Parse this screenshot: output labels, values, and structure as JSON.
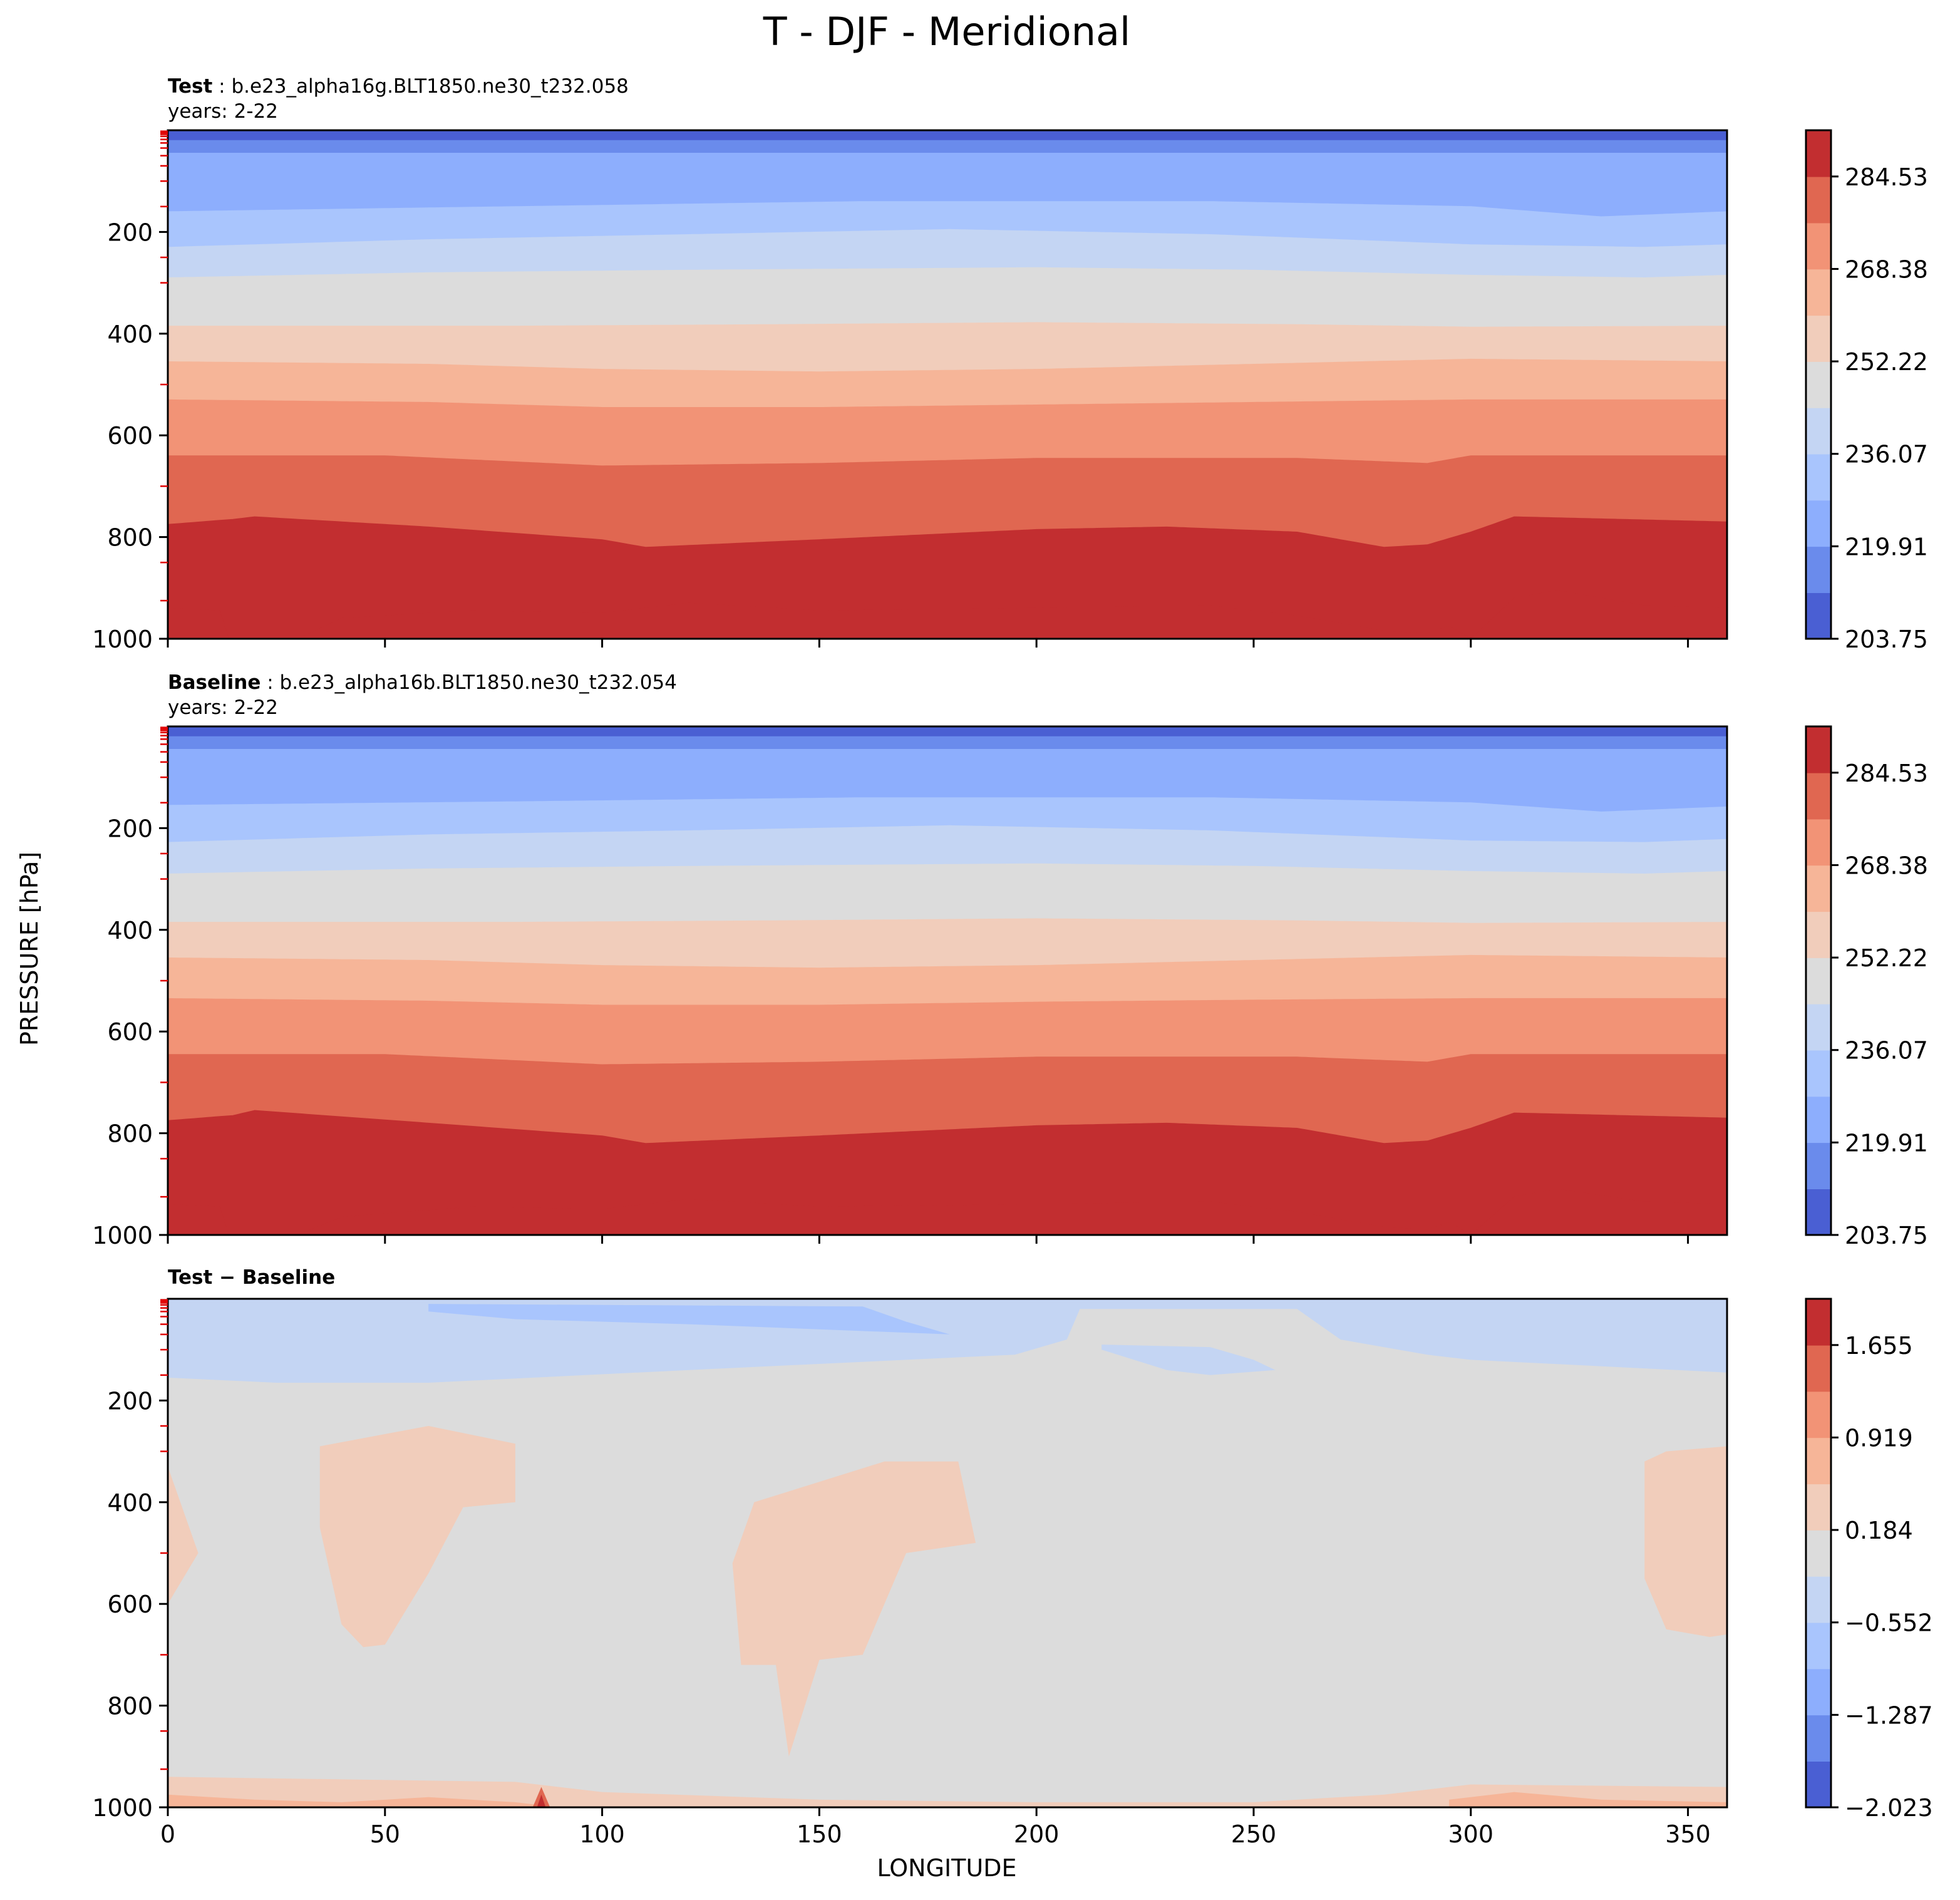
{
  "figure": {
    "title": "T - DJF - Meridional",
    "xlabel": "LONGITUDE",
    "ylabel": "PRESSURE [hPa]"
  },
  "chart_data": [
    {
      "type": "heatmap",
      "panel": "test",
      "title_bold": "Test",
      "title_rest": " : b.e23_alpha16g.BLT1850.ne30_t232.058",
      "subtitle": "years: 2-22",
      "xlim": [
        0,
        359
      ],
      "ylim": [
        1000,
        0
      ],
      "xticks": [
        0,
        50,
        100,
        150,
        200,
        250,
        300,
        350
      ],
      "show_xtick_labels": false,
      "yticks": [
        200,
        400,
        600,
        800,
        1000
      ],
      "colorbar_ticks": [
        "284.53",
        "268.38",
        "252.22",
        "236.07",
        "219.91",
        "203.75"
      ],
      "levels": [
        203.75,
        211.83,
        219.91,
        227.99,
        236.07,
        244.15,
        252.22,
        260.3,
        268.38,
        276.46,
        284.53,
        292.61
      ],
      "colors": [
        "#4a5fd3",
        "#6a8bec",
        "#8daefd",
        "#a9c5fd",
        "#c4d5f3",
        "#dcdcdc",
        "#f1cdbb",
        "#f6b598",
        "#f29376",
        "#e06751",
        "#c22e30"
      ],
      "boundaries": [
        {
          "lon": [
            0,
            359
          ],
          "p": [
            20,
            20
          ]
        },
        {
          "lon": [
            0,
            359
          ],
          "p": [
            45,
            45
          ]
        },
        {
          "lon": [
            0,
            80,
            160,
            240,
            300,
            330,
            359
          ],
          "p": [
            160,
            150,
            140,
            140,
            150,
            170,
            160
          ]
        },
        {
          "lon": [
            0,
            60,
            120,
            180,
            240,
            300,
            340,
            359
          ],
          "p": [
            230,
            215,
            205,
            195,
            205,
            225,
            230,
            225
          ]
        },
        {
          "lon": [
            0,
            60,
            120,
            200,
            250,
            300,
            340,
            359
          ],
          "p": [
            290,
            280,
            275,
            270,
            275,
            285,
            290,
            285
          ]
        },
        {
          "lon": [
            0,
            80,
            140,
            200,
            260,
            300,
            359
          ],
          "p": [
            385,
            385,
            382,
            378,
            382,
            387,
            385
          ]
        },
        {
          "lon": [
            0,
            60,
            100,
            150,
            200,
            250,
            300,
            359
          ],
          "p": [
            455,
            460,
            470,
            475,
            470,
            460,
            450,
            455
          ]
        },
        {
          "lon": [
            0,
            60,
            100,
            150,
            200,
            250,
            300,
            359
          ],
          "p": [
            530,
            535,
            545,
            545,
            540,
            535,
            530,
            530
          ]
        },
        {
          "lon": [
            0,
            50,
            100,
            150,
            200,
            260,
            290,
            300,
            359
          ],
          "p": [
            640,
            640,
            660,
            655,
            645,
            645,
            655,
            640,
            640
          ]
        },
        {
          "lon": [
            0,
            15,
            20,
            60,
            100,
            110,
            150,
            200,
            230,
            260,
            280,
            290,
            300,
            310,
            359
          ],
          "p": [
            775,
            765,
            760,
            780,
            805,
            820,
            805,
            785,
            780,
            790,
            820,
            815,
            790,
            760,
            770
          ]
        },
        {
          "lon": [
            0,
            12,
            14,
            30,
            40,
            70,
            100,
            120,
            150,
            200,
            240,
            260,
            280,
            290,
            295,
            300,
            310,
            320,
            340,
            359
          ],
          "p": [
            940,
            945,
            1000,
            1000,
            960,
            945,
            950,
            930,
            945,
            940,
            935,
            955,
            985,
            990,
            975,
            1000,
            920,
            905,
            935,
            940
          ]
        }
      ]
    },
    {
      "type": "heatmap",
      "panel": "baseline",
      "title_bold": "Baseline",
      "title_rest": " : b.e23_alpha16b.BLT1850.ne30_t232.054",
      "subtitle": "years: 2-22",
      "xlim": [
        0,
        359
      ],
      "ylim": [
        1000,
        0
      ],
      "xticks": [
        0,
        50,
        100,
        150,
        200,
        250,
        300,
        350
      ],
      "show_xtick_labels": false,
      "yticks": [
        200,
        400,
        600,
        800,
        1000
      ],
      "colorbar_ticks": [
        "284.53",
        "268.38",
        "252.22",
        "236.07",
        "219.91",
        "203.75"
      ],
      "levels": [
        203.75,
        211.83,
        219.91,
        227.99,
        236.07,
        244.15,
        252.22,
        260.3,
        268.38,
        276.46,
        284.53,
        292.61
      ],
      "colors": [
        "#4a5fd3",
        "#6a8bec",
        "#8daefd",
        "#a9c5fd",
        "#c4d5f3",
        "#dcdcdc",
        "#f1cdbb",
        "#f6b598",
        "#f29376",
        "#e06751",
        "#c22e30"
      ],
      "boundaries": [
        {
          "lon": [
            0,
            359
          ],
          "p": [
            20,
            20
          ]
        },
        {
          "lon": [
            0,
            359
          ],
          "p": [
            45,
            45
          ]
        },
        {
          "lon": [
            0,
            80,
            160,
            240,
            300,
            330,
            359
          ],
          "p": [
            155,
            148,
            140,
            140,
            150,
            168,
            158
          ]
        },
        {
          "lon": [
            0,
            60,
            120,
            180,
            240,
            300,
            340,
            359
          ],
          "p": [
            228,
            213,
            205,
            195,
            205,
            225,
            228,
            222
          ]
        },
        {
          "lon": [
            0,
            60,
            120,
            200,
            250,
            300,
            340,
            359
          ],
          "p": [
            290,
            280,
            275,
            270,
            275,
            285,
            290,
            285
          ]
        },
        {
          "lon": [
            0,
            80,
            140,
            200,
            260,
            300,
            359
          ],
          "p": [
            385,
            385,
            382,
            378,
            382,
            387,
            385
          ]
        },
        {
          "lon": [
            0,
            60,
            100,
            150,
            200,
            250,
            300,
            359
          ],
          "p": [
            455,
            460,
            470,
            475,
            470,
            460,
            450,
            455
          ]
        },
        {
          "lon": [
            0,
            60,
            100,
            150,
            200,
            250,
            300,
            359
          ],
          "p": [
            535,
            540,
            548,
            548,
            542,
            538,
            535,
            535
          ]
        },
        {
          "lon": [
            0,
            50,
            100,
            150,
            200,
            260,
            290,
            300,
            359
          ],
          "p": [
            645,
            645,
            665,
            660,
            650,
            650,
            660,
            645,
            645
          ]
        },
        {
          "lon": [
            0,
            15,
            20,
            60,
            100,
            110,
            150,
            200,
            230,
            260,
            280,
            290,
            300,
            310,
            359
          ],
          "p": [
            775,
            765,
            755,
            780,
            805,
            820,
            805,
            785,
            780,
            790,
            820,
            815,
            790,
            760,
            770
          ]
        },
        {
          "lon": [
            0,
            12,
            14,
            30,
            40,
            70,
            100,
            120,
            150,
            200,
            240,
            260,
            280,
            290,
            295,
            300,
            310,
            320,
            340,
            359
          ],
          "p": [
            940,
            945,
            1000,
            1000,
            965,
            945,
            950,
            930,
            945,
            940,
            935,
            955,
            985,
            990,
            975,
            1000,
            925,
            910,
            935,
            940
          ]
        }
      ]
    },
    {
      "type": "heatmap",
      "panel": "difference",
      "title_bold": "Test − Baseline",
      "title_rest": "",
      "subtitle": "",
      "xlim": [
        0,
        359
      ],
      "ylim": [
        1000,
        0
      ],
      "xticks": [
        0,
        50,
        100,
        150,
        200,
        250,
        300,
        350
      ],
      "show_xtick_labels": true,
      "yticks": [
        200,
        400,
        600,
        800,
        1000
      ],
      "colorbar_ticks": [
        "1.655",
        "0.919",
        "0.184",
        "−0.552",
        "−1.287",
        "−2.023"
      ],
      "levels": [
        -2.023,
        -1.655,
        -1.287,
        -0.92,
        -0.552,
        -0.184,
        0.184,
        0.552,
        0.919,
        1.287,
        1.655,
        2.023
      ],
      "colors": [
        "#4a5fd3",
        "#6a8bec",
        "#8daefd",
        "#a9c5fd",
        "#c4d5f3",
        "#dcdcdc",
        "#f1cdbb",
        "#f6b598",
        "#f29376",
        "#e06751",
        "#c22e30"
      ],
      "background_color_index": 5,
      "regions": [
        {
          "c": 4,
          "pts": [
            [
              0,
              0
            ],
            [
              359,
              0
            ],
            [
              359,
              145
            ],
            [
              300,
              120
            ],
            [
              290,
              110
            ],
            [
              270,
              80
            ],
            [
              260,
              20
            ],
            [
              210,
              20
            ],
            [
              207,
              80
            ],
            [
              195,
              110
            ],
            [
              170,
              120
            ],
            [
              120,
              140
            ],
            [
              60,
              165
            ],
            [
              25,
              165
            ],
            [
              0,
              155
            ]
          ]
        },
        {
          "c": 4,
          "pts": [
            [
              215,
              90
            ],
            [
              240,
              95
            ],
            [
              250,
              120
            ],
            [
              255,
              140
            ],
            [
              240,
              150
            ],
            [
              230,
              140
            ],
            [
              215,
              100
            ]
          ]
        },
        {
          "c": 3,
          "pts": [
            [
              60,
              10
            ],
            [
              160,
              15
            ],
            [
              170,
              45
            ],
            [
              180,
              70
            ],
            [
              150,
              60
            ],
            [
              120,
              50
            ],
            [
              80,
              40
            ],
            [
              60,
              25
            ]
          ]
        },
        {
          "c": 6,
          "pts": [
            [
              0,
              330
            ],
            [
              7,
              500
            ],
            [
              0,
              600
            ]
          ]
        },
        {
          "c": 6,
          "pts": [
            [
              35,
              290
            ],
            [
              60,
              250
            ],
            [
              80,
              285
            ],
            [
              80,
              400
            ],
            [
              68,
              410
            ],
            [
              60,
              540
            ],
            [
              50,
              680
            ],
            [
              45,
              685
            ],
            [
              40,
              640
            ],
            [
              35,
              450
            ]
          ]
        },
        {
          "c": 6,
          "pts": [
            [
              135,
              400
            ],
            [
              165,
              320
            ],
            [
              182,
              320
            ],
            [
              186,
              480
            ],
            [
              170,
              500
            ],
            [
              160,
              700
            ],
            [
              150,
              710
            ],
            [
              143,
              900
            ],
            [
              140,
              720
            ],
            [
              132,
              720
            ],
            [
              130,
              520
            ]
          ]
        },
        {
          "c": 6,
          "pts": [
            [
              359,
              290
            ],
            [
              345,
              300
            ],
            [
              340,
              320
            ],
            [
              340,
              550
            ],
            [
              345,
              650
            ],
            [
              355,
              665
            ],
            [
              359,
              660
            ]
          ]
        },
        {
          "c": 6,
          "pts": [
            [
              0,
              940
            ],
            [
              80,
              950
            ],
            [
              100,
              970
            ],
            [
              150,
              985
            ],
            [
              200,
              990
            ],
            [
              250,
              990
            ],
            [
              280,
              975
            ],
            [
              300,
              955
            ],
            [
              359,
              960
            ],
            [
              359,
              1000
            ],
            [
              0,
              1000
            ]
          ]
        },
        {
          "c": 7,
          "pts": [
            [
              0,
              975
            ],
            [
              20,
              985
            ],
            [
              40,
              990
            ],
            [
              60,
              980
            ],
            [
              80,
              990
            ],
            [
              90,
              1000
            ],
            [
              0,
              1000
            ]
          ]
        },
        {
          "c": 7,
          "pts": [
            [
              295,
              985
            ],
            [
              310,
              970
            ],
            [
              330,
              985
            ],
            [
              359,
              990
            ],
            [
              359,
              1000
            ],
            [
              295,
              1000
            ]
          ]
        },
        {
          "c": 9,
          "pts": [
            [
              84,
              1000
            ],
            [
              86,
              960
            ],
            [
              88,
              1000
            ]
          ]
        },
        {
          "c": 10,
          "pts": [
            [
              85,
              1000
            ],
            [
              86,
              975
            ],
            [
              87,
              1000
            ]
          ]
        }
      ]
    }
  ]
}
